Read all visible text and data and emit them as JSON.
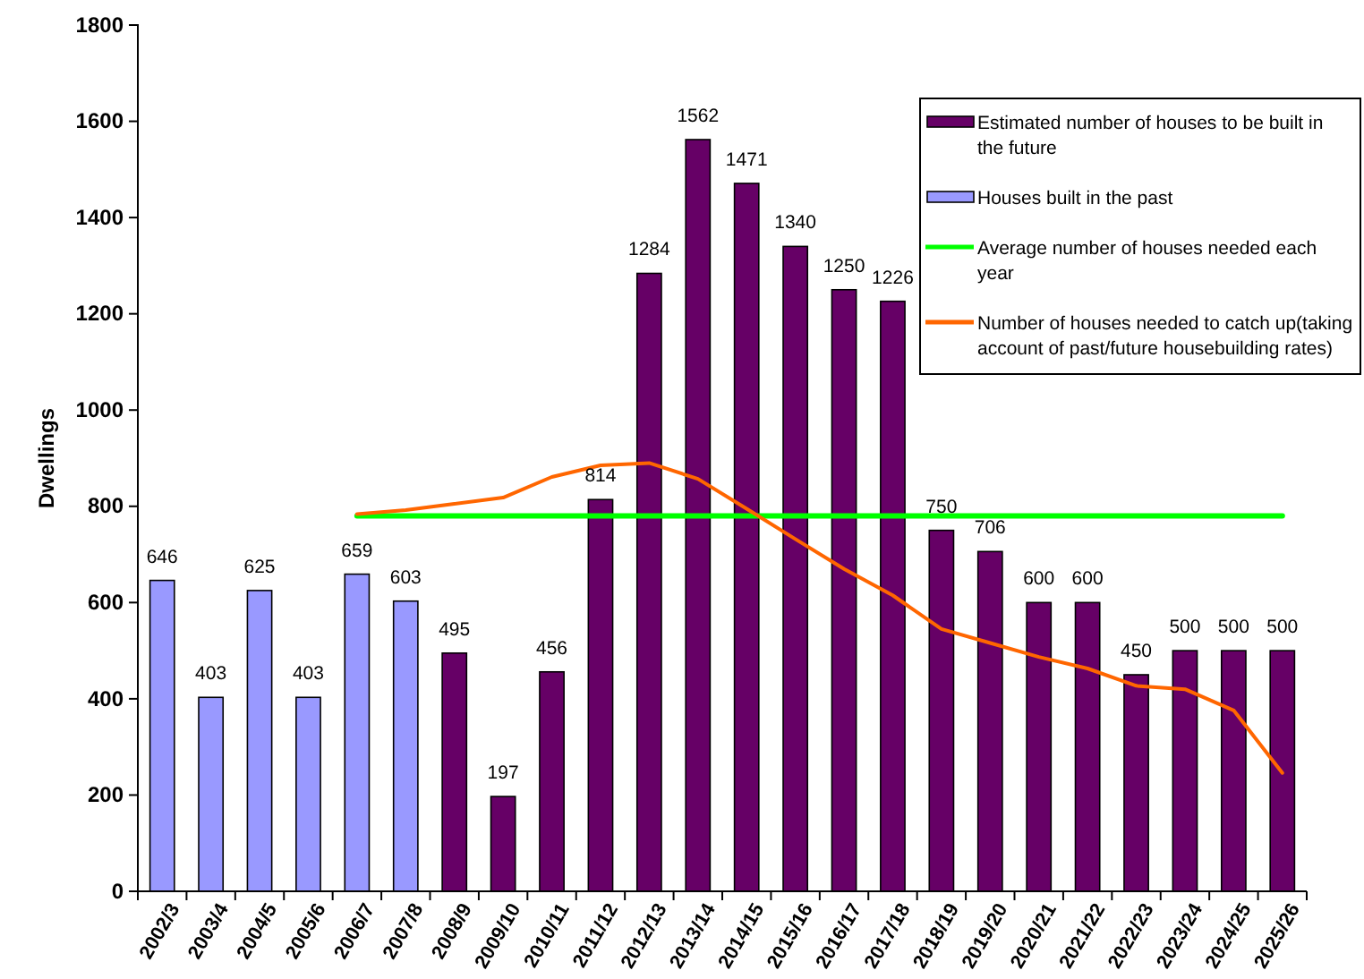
{
  "chart_data": {
    "type": "bar",
    "ylabel": "Dwellings",
    "categories": [
      "2002/3",
      "2003/4",
      "2004/5",
      "2005/6",
      "2006/7",
      "2007/8",
      "2008/9",
      "2009/10",
      "2010/11",
      "2011/12",
      "2012/13",
      "2013/14",
      "2014/15",
      "2015/16",
      "2016/17",
      "2017/18",
      "2018/19",
      "2019/20",
      "2020/21",
      "2021/22",
      "2022/23",
      "2023/24",
      "2024/25",
      "2025/26"
    ],
    "series": [
      {
        "name": "Estimated number of houses to be built in the future",
        "color": "#660066",
        "values": [
          null,
          null,
          null,
          null,
          null,
          null,
          495,
          197,
          456,
          814,
          1284,
          1562,
          1471,
          1340,
          1250,
          1226,
          750,
          706,
          600,
          600,
          450,
          500,
          500,
          500
        ],
        "value_labels": [
          null,
          null,
          null,
          null,
          null,
          null,
          "495",
          "197",
          "456",
          "814",
          "1284",
          "1562",
          "1471",
          "1340",
          "1250",
          "1226",
          "750",
          "706",
          "600",
          "600",
          "450",
          "500",
          "500",
          "500"
        ]
      },
      {
        "name": "Houses built in the past",
        "color": "#9999ff",
        "values": [
          646,
          403,
          625,
          403,
          659,
          603,
          null,
          null,
          null,
          null,
          null,
          null,
          null,
          null,
          null,
          null,
          null,
          null,
          null,
          null,
          null,
          null,
          null,
          null
        ],
        "value_labels": [
          "646",
          "403",
          "625",
          "403",
          "659",
          "603",
          null,
          null,
          null,
          null,
          null,
          null,
          null,
          null,
          null,
          null,
          null,
          null,
          null,
          null,
          null,
          null,
          null,
          null
        ]
      },
      {
        "name": "Average number of houses needed each year",
        "type": "line",
        "color": "#00ff00",
        "values": [
          null,
          null,
          null,
          null,
          780,
          780,
          780,
          780,
          780,
          780,
          780,
          780,
          780,
          780,
          780,
          780,
          780,
          780,
          780,
          780,
          780,
          780,
          780,
          780
        ]
      },
      {
        "name": "Number of houses needed to catch up(taking account of past/future housebuilding rates)",
        "type": "line",
        "color": "#ff6600",
        "values": [
          null,
          null,
          null,
          null,
          784,
          792,
          805,
          818,
          861,
          885,
          890,
          857,
          795,
          732,
          670,
          615,
          545,
          516,
          487,
          463,
          427,
          420,
          376,
          246
        ]
      }
    ],
    "ylim": [
      0,
      1800
    ],
    "yticks": [
      0,
      200,
      400,
      600,
      800,
      1000,
      1200,
      1400,
      1600,
      1800
    ],
    "grid": false,
    "legend": "top right"
  }
}
